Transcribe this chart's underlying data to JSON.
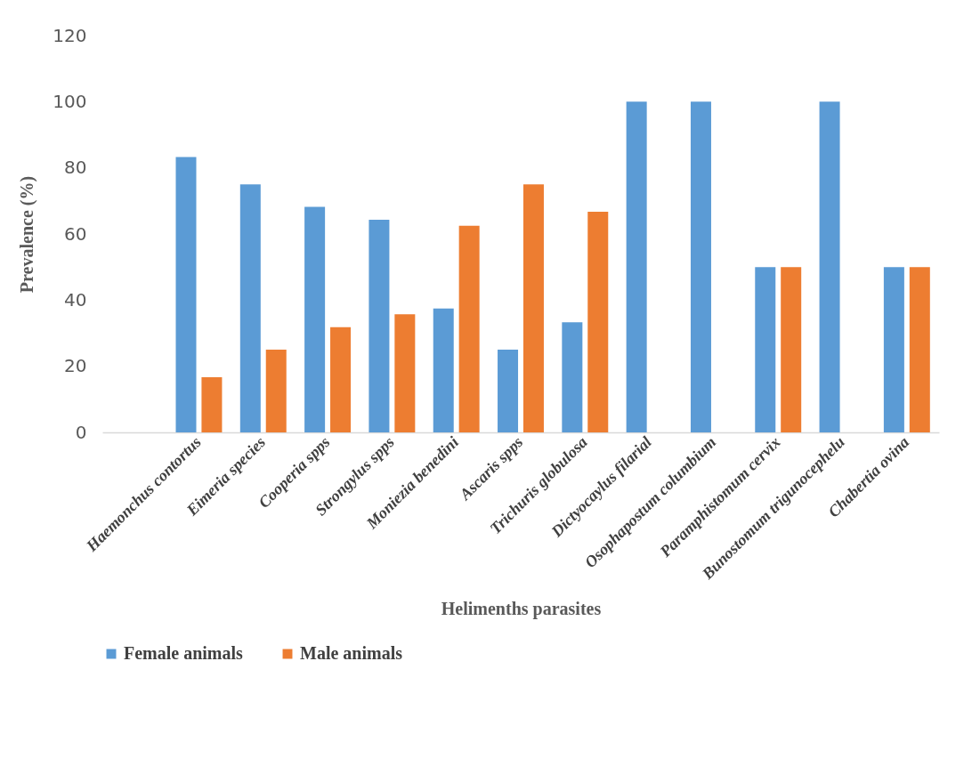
{
  "chart_data": {
    "type": "bar",
    "xlabel": "Helimenths parasites",
    "ylabel": "Prevalence (%)",
    "categories": [
      null,
      "Haemonchus contortus",
      "Eimeria species",
      "Cooperia spps",
      "Strongylus spps",
      "Moniezia benedini",
      "Ascaris spps",
      "Trichuris globulosa",
      "Dictyocaylus filarial",
      "Osophapostum columbium",
      "Paramphistomum cervix",
      "Bunostomum trigunocephelu",
      "Chabertia ovina"
    ],
    "series": [
      {
        "name": "Female animals",
        "color": "#5b9bd5",
        "values": [
          null,
          83.3,
          75,
          68.2,
          64.3,
          37.5,
          25,
          33.3,
          100,
          100,
          50,
          100,
          50
        ]
      },
      {
        "name": "Male animals",
        "color": "#ed7d31",
        "values": [
          null,
          16.7,
          25,
          31.8,
          35.7,
          62.5,
          75,
          66.7,
          null,
          null,
          50,
          null,
          50
        ]
      }
    ],
    "ylim": [
      0,
      120
    ],
    "yticks": [
      0,
      20,
      40,
      60,
      80,
      100,
      120
    ],
    "grid": false,
    "legend": "bottom"
  }
}
